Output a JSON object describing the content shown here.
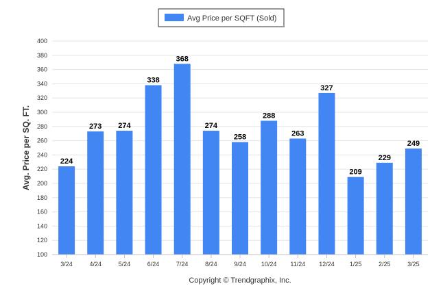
{
  "chart_data": {
    "type": "bar",
    "categories": [
      "3/24",
      "4/24",
      "5/24",
      "6/24",
      "7/24",
      "8/24",
      "9/24",
      "10/24",
      "11/24",
      "12/24",
      "1/25",
      "2/25",
      "3/25"
    ],
    "series": [
      {
        "name": "Avg Price per SQFT (Sold)",
        "values": [
          224,
          273,
          274,
          338,
          368,
          274,
          258,
          288,
          263,
          327,
          209,
          229,
          249
        ],
        "color": "#4286f4"
      }
    ],
    "title": "",
    "xlabel": "",
    "ylabel": "Avg. Price per SQ. FT.",
    "ylim": [
      100,
      400
    ],
    "yticks": [
      100,
      120,
      140,
      160,
      180,
      200,
      220,
      240,
      260,
      280,
      300,
      320,
      340,
      360,
      380,
      400
    ],
    "grid": true,
    "legend": "top-center",
    "data_labels": true
  },
  "credit": "Copyright © Trendgraphix, Inc.",
  "colors": {
    "bar": "#4286f4",
    "grid": "#e6e6e6",
    "axis": "#c0c0c0"
  }
}
